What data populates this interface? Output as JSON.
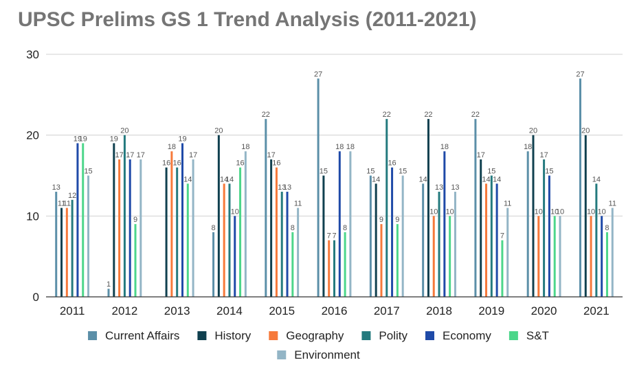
{
  "chart_data": {
    "type": "bar",
    "title": "UPSC Prelims GS 1 Trend Analysis (2011-2021)",
    "xlabel": "",
    "ylabel": "",
    "ylim": [
      0,
      30
    ],
    "yticks": [
      0,
      10,
      20,
      30
    ],
    "grid": true,
    "legend_position": "bottom",
    "categories": [
      "2011",
      "2012",
      "2013",
      "2014",
      "2015",
      "2016",
      "2017",
      "2018",
      "2019",
      "2020",
      "2021"
    ],
    "series": [
      {
        "name": "Current Affairs",
        "color": "#5b8fa8",
        "values": [
          13,
          1,
          0,
          8,
          22,
          27,
          15,
          14,
          22,
          18,
          27
        ]
      },
      {
        "name": "History",
        "color": "#10404f",
        "values": [
          11,
          19,
          16,
          20,
          17,
          15,
          14,
          22,
          17,
          20,
          20
        ]
      },
      {
        "name": "Geography",
        "color": "#f6793a",
        "values": [
          11,
          17,
          18,
          14,
          16,
          7,
          9,
          10,
          14,
          10,
          10
        ]
      },
      {
        "name": "Polity",
        "color": "#247a7e",
        "values": [
          12,
          20,
          16,
          14,
          13,
          7,
          22,
          13,
          15,
          17,
          14
        ]
      },
      {
        "name": "Economy",
        "color": "#1f4aa8",
        "values": [
          19,
          17,
          19,
          10,
          13,
          18,
          16,
          18,
          14,
          15,
          10
        ]
      },
      {
        "name": "S&T",
        "color": "#4cd68a",
        "values": [
          19,
          9,
          14,
          16,
          8,
          8,
          9,
          10,
          7,
          10,
          8
        ]
      },
      {
        "name": "Environment",
        "color": "#93b5c6",
        "values": [
          15,
          17,
          17,
          18,
          11,
          18,
          15,
          13,
          11,
          10,
          11
        ]
      }
    ]
  }
}
